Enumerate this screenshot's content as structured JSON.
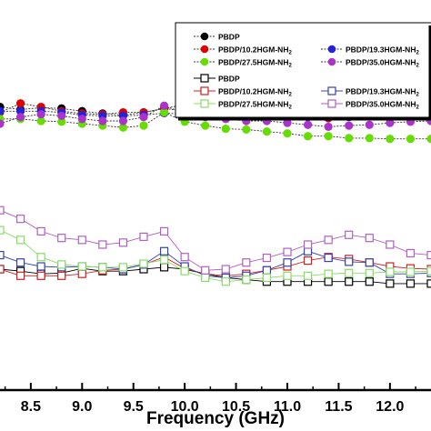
{
  "chart_data": {
    "type": "line",
    "xlabel": "Frequency (GHz)",
    "xlim": [
      8.2,
      12.4
    ],
    "ylim": [
      0,
      100
    ],
    "x_ticks": [
      "8.5",
      "9.0",
      "9.5",
      "10.0",
      "10.5",
      "11.0",
      "11.5",
      "12.0"
    ],
    "x_tick_values": [
      8.5,
      9.0,
      9.5,
      10.0,
      10.5,
      11.0,
      11.5,
      12.0
    ],
    "legend_position": "top-right",
    "x": [
      8.2,
      8.4,
      8.6,
      8.8,
      9.0,
      9.2,
      9.4,
      9.6,
      9.8,
      10.0,
      10.2,
      10.4,
      10.6,
      10.8,
      11.0,
      11.2,
      11.4,
      11.6,
      11.8,
      12.0,
      12.2,
      12.4
    ],
    "series": [
      {
        "legend": "PBDP",
        "sub": "",
        "color": "#000000",
        "marker": "circle",
        "filled": true,
        "values": [
          72.6,
          71.9,
          72.4,
          72.2,
          71.5,
          70.9,
          70.5,
          71.2,
          72.2,
          73.2,
          74.0,
          74.0,
          74.0,
          74.0,
          74.0,
          73.7,
          73.4,
          74.0,
          74.0,
          74.2,
          74.0,
          74.2
        ]
      },
      {
        "legend": "PBDP/10.2HGM-NH",
        "sub": "2",
        "color": "#e00000",
        "marker": "circle",
        "filled": true,
        "values": [
          71.2,
          73.5,
          72.6,
          71.5,
          70.9,
          70.7,
          71.2,
          71.2,
          72.2,
          71.5,
          70.5,
          70.5,
          70.5,
          70.5,
          70.5,
          70.5,
          69.7,
          70.7,
          71.2,
          71.0,
          71.2,
          71.5
        ]
      },
      {
        "legend": "PBDP/19.3HGM-NH",
        "sub": "2",
        "color": "#2222dd",
        "marker": "circle",
        "filled": true,
        "values": [
          71.5,
          71.5,
          71.5,
          71.2,
          70.5,
          70.3,
          70.3,
          70.5,
          71.0,
          70.7,
          70.7,
          70.5,
          70.3,
          70.5,
          70.3,
          70.0,
          70.0,
          70.0,
          70.3,
          70.3,
          70.3,
          70.5
        ]
      },
      {
        "legend": "PBDP/27.5HGM-NH",
        "sub": "2",
        "color": "#66dd00",
        "marker": "circle",
        "filled": true,
        "values": [
          69.5,
          69.5,
          69.0,
          68.8,
          68.3,
          67.8,
          67.3,
          67.8,
          71.2,
          68.8,
          67.8,
          67.0,
          66.8,
          66.3,
          65.8,
          65.1,
          65.1,
          64.6,
          64.6,
          64.4,
          64.4,
          64.4
        ]
      },
      {
        "legend": "PBDP/35.0HGM-NH",
        "sub": "2",
        "color": "#aa33cc",
        "marker": "circle",
        "filled": true,
        "values": [
          68.3,
          70.0,
          70.7,
          70.3,
          69.5,
          69.0,
          69.0,
          70.0,
          72.9,
          71.0,
          70.0,
          69.5,
          69.0,
          69.0,
          68.5,
          68.0,
          67.5,
          67.8,
          68.0,
          68.5,
          68.8,
          69.0
        ]
      },
      {
        "legend": "PBDP",
        "sub": "",
        "color": "#000000",
        "marker": "square",
        "filled": false,
        "values": [
          31.0,
          30.5,
          29.8,
          30.0,
          31.2,
          30.5,
          30.5,
          31.0,
          31.5,
          31.0,
          29.8,
          28.8,
          28.3,
          27.8,
          27.8,
          27.8,
          27.8,
          27.8,
          27.8,
          27.3,
          27.3,
          27.3
        ]
      },
      {
        "legend": "PBDP/10.2HGM-NH",
        "sub": "2",
        "color": "#cc2222",
        "marker": "square",
        "filled": false,
        "values": [
          31.0,
          29.3,
          29.3,
          29.3,
          29.8,
          30.7,
          31.0,
          32.2,
          34.1,
          31.2,
          29.8,
          29.3,
          29.8,
          30.7,
          31.7,
          33.2,
          34.1,
          33.6,
          32.7,
          31.7,
          31.2,
          31.0
        ]
      },
      {
        "legend": "PBDP/19.3HGM-NH",
        "sub": "2",
        "color": "#3344aa",
        "marker": "square",
        "filled": false,
        "values": [
          34.6,
          32.7,
          31.7,
          31.5,
          31.7,
          31.5,
          31.0,
          32.2,
          35.6,
          31.7,
          29.3,
          28.8,
          29.3,
          30.7,
          32.7,
          35.6,
          33.9,
          32.9,
          32.7,
          29.8,
          29.8,
          30.0
        ]
      },
      {
        "legend": "PBDP/27.5HGM-NH",
        "sub": "2",
        "color": "#88dd66",
        "marker": "square",
        "filled": false,
        "values": [
          41.0,
          38.5,
          34.1,
          32.2,
          31.7,
          31.5,
          31.5,
          32.4,
          33.4,
          30.5,
          28.8,
          27.8,
          28.3,
          28.8,
          29.3,
          29.3,
          29.8,
          30.0,
          30.0,
          30.3,
          30.3,
          30.5
        ]
      },
      {
        "legend": "PBDP/35.0HGM-NH",
        "sub": "2",
        "color": "#b060c0",
        "marker": "square",
        "filled": false,
        "values": [
          46.1,
          43.9,
          40.7,
          39.0,
          38.5,
          37.3,
          37.8,
          39.3,
          40.7,
          34.1,
          30.7,
          31.0,
          32.7,
          33.9,
          35.4,
          37.3,
          38.5,
          39.8,
          39.0,
          37.3,
          35.1,
          34.6
        ]
      }
    ]
  }
}
